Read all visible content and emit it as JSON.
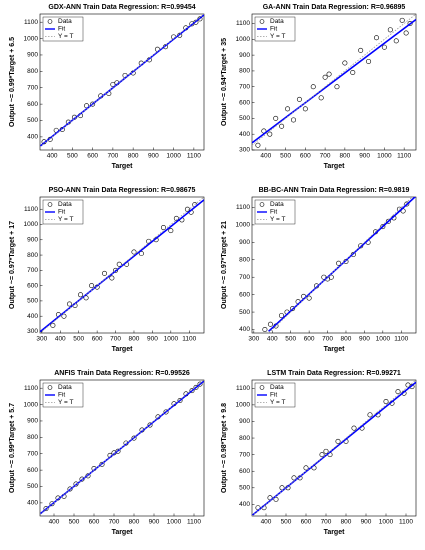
{
  "chart_data": [
    {
      "type": "scatter",
      "title": "GDX-ANN Train Data Regression: R=0.99454",
      "xlabel": "Target",
      "ylabel": "Output ~= 0.99*Target + 6.5",
      "xlim": [
        340,
        1150
      ],
      "ylim": [
        320,
        1150
      ],
      "xticks": [
        400,
        500,
        600,
        700,
        800,
        900,
        1000,
        1100
      ],
      "yticks": [
        400,
        500,
        600,
        700,
        800,
        900,
        1000,
        1100
      ],
      "legend": "upper left",
      "series": [
        {
          "name": "Data",
          "color": "#000000",
          "x": [
            360,
            390,
            420,
            450,
            480,
            510,
            540,
            570,
            600,
            640,
            680,
            720,
            760,
            800,
            840,
            880,
            920,
            960,
            1000,
            1030,
            1060,
            1090,
            1110,
            1130,
            700
          ],
          "values": [
            370,
            385,
            440,
            445,
            490,
            520,
            530,
            590,
            600,
            650,
            665,
            730,
            775,
            790,
            850,
            870,
            935,
            950,
            1010,
            1020,
            1065,
            1090,
            1100,
            1120,
            720
          ]
        },
        {
          "name": "Fit",
          "color": "#0000ff",
          "x": [
            340,
            1150
          ],
          "values": [
            343.1,
            1145
          ]
        },
        {
          "name": "Y = T",
          "color": "#999999",
          "x": [
            340,
            1150
          ],
          "values": [
            340,
            1150
          ]
        }
      ]
    },
    {
      "type": "scatter",
      "title": "GA-ANN Train Data Regression: R=0.96895",
      "xlabel": "Target",
      "ylabel": "Output ~= 0.94*Target + 35",
      "xlim": [
        330,
        1160
      ],
      "ylim": [
        300,
        1160
      ],
      "xticks": [
        400,
        500,
        600,
        700,
        800,
        900,
        1000,
        1100
      ],
      "yticks": [
        300,
        400,
        500,
        600,
        700,
        800,
        900,
        1000,
        1100
      ],
      "legend": "upper left",
      "series": [
        {
          "name": "Data",
          "color": "#000000",
          "x": [
            360,
            390,
            420,
            450,
            480,
            510,
            540,
            570,
            600,
            640,
            680,
            720,
            760,
            800,
            840,
            880,
            920,
            960,
            1000,
            1030,
            1060,
            1090,
            1110,
            1130,
            700
          ],
          "values": [
            330,
            420,
            400,
            500,
            450,
            560,
            490,
            620,
            560,
            700,
            630,
            780,
            700,
            850,
            790,
            930,
            860,
            1010,
            950,
            1060,
            990,
            1120,
            1040,
            1100,
            760
          ]
        },
        {
          "name": "Fit",
          "color": "#0000ff",
          "x": [
            330,
            1160
          ],
          "values": [
            345.2,
            1125.4
          ]
        },
        {
          "name": "Y = T",
          "color": "#999999",
          "x": [
            330,
            1160
          ],
          "values": [
            330,
            1160
          ]
        }
      ]
    },
    {
      "type": "scatter",
      "title": "PSO-ANN Train Data Regression: R=0.98675",
      "xlabel": "Target",
      "ylabel": "Output ~= 0.97*Target + 17",
      "xlim": [
        290,
        1180
      ],
      "ylim": [
        290,
        1180
      ],
      "xticks": [
        300,
        400,
        500,
        600,
        700,
        800,
        900,
        1000,
        1100
      ],
      "yticks": [
        300,
        400,
        500,
        600,
        700,
        800,
        900,
        1000,
        1100
      ],
      "legend": "upper left",
      "series": [
        {
          "name": "Data",
          "color": "#000000",
          "x": [
            360,
            390,
            420,
            450,
            480,
            510,
            540,
            570,
            600,
            640,
            680,
            720,
            760,
            800,
            840,
            880,
            920,
            960,
            1000,
            1030,
            1060,
            1090,
            1110,
            1130,
            700
          ],
          "values": [
            340,
            410,
            400,
            480,
            470,
            540,
            520,
            600,
            590,
            680,
            650,
            740,
            740,
            820,
            810,
            890,
            900,
            980,
            960,
            1040,
            1030,
            1100,
            1080,
            1130,
            700
          ]
        },
        {
          "name": "Fit",
          "color": "#0000ff",
          "x": [
            290,
            1180
          ],
          "values": [
            298.3,
            1161.6
          ]
        },
        {
          "name": "Y = T",
          "color": "#999999",
          "x": [
            290,
            1180
          ],
          "values": [
            290,
            1180
          ]
        }
      ]
    },
    {
      "type": "scatter",
      "title": "BB-BC-ANN Train Data Regression: R=0.9819",
      "xlabel": "Target",
      "ylabel": "Output ~= 0.97*Target + 21",
      "xlim": [
        290,
        1180
      ],
      "ylim": [
        380,
        1160
      ],
      "xticks": [
        300,
        400,
        500,
        600,
        700,
        800,
        900,
        1000,
        1100
      ],
      "yticks": [
        400,
        500,
        600,
        700,
        800,
        900,
        1000,
        1100
      ],
      "legend": "upper left",
      "series": [
        {
          "name": "Data",
          "color": "#000000",
          "x": [
            360,
            390,
            420,
            450,
            480,
            510,
            540,
            570,
            600,
            640,
            680,
            720,
            760,
            800,
            840,
            880,
            920,
            960,
            1000,
            1030,
            1060,
            1090,
            1110,
            1130,
            700
          ],
          "values": [
            400,
            430,
            420,
            480,
            500,
            520,
            560,
            590,
            580,
            650,
            700,
            700,
            780,
            790,
            830,
            880,
            900,
            960,
            990,
            1020,
            1040,
            1090,
            1080,
            1120,
            690
          ]
        },
        {
          "name": "Fit",
          "color": "#0000ff",
          "x": [
            380,
            1180
          ],
          "values": [
            389.6,
            1165.6
          ]
        },
        {
          "name": "Y = T",
          "color": "#999999",
          "x": [
            380,
            1180
          ],
          "values": [
            380,
            1180
          ]
        }
      ]
    },
    {
      "type": "scatter",
      "title": "ANFIS Train Data Regression: R=0.99526",
      "xlabel": "Target",
      "ylabel": "Output ~= 0.99*Target + 5.7",
      "xlim": [
        330,
        1150
      ],
      "ylim": [
        320,
        1150
      ],
      "xticks": [
        400,
        500,
        600,
        700,
        800,
        900,
        1000,
        1100
      ],
      "yticks": [
        400,
        500,
        600,
        700,
        800,
        900,
        1000,
        1100
      ],
      "legend": "upper left",
      "series": [
        {
          "name": "Data",
          "color": "#000000",
          "x": [
            360,
            390,
            420,
            450,
            480,
            510,
            540,
            570,
            600,
            640,
            680,
            720,
            760,
            800,
            840,
            880,
            920,
            960,
            1000,
            1030,
            1060,
            1090,
            1110,
            1130,
            700
          ],
          "values": [
            365,
            395,
            430,
            440,
            485,
            515,
            545,
            565,
            610,
            635,
            690,
            715,
            765,
            795,
            845,
            875,
            925,
            955,
            1005,
            1025,
            1065,
            1085,
            1105,
            1125,
            705
          ]
        },
        {
          "name": "Fit",
          "color": "#0000ff",
          "x": [
            330,
            1150
          ],
          "values": [
            332.4,
            1144.2
          ]
        },
        {
          "name": "Y = T",
          "color": "#999999",
          "x": [
            330,
            1150
          ],
          "values": [
            330,
            1150
          ]
        }
      ]
    },
    {
      "type": "scatter",
      "title": "LSTM Train Data Regression: R=0.99271",
      "xlabel": "Target",
      "ylabel": "Output ~= 0.98*Target + 9.8",
      "xlim": [
        330,
        1150
      ],
      "ylim": [
        330,
        1150
      ],
      "xticks": [
        400,
        500,
        600,
        700,
        800,
        900,
        1000,
        1100
      ],
      "yticks": [
        400,
        500,
        600,
        700,
        800,
        900,
        1000,
        1100
      ],
      "legend": "upper left",
      "series": [
        {
          "name": "Data",
          "color": "#000000",
          "x": [
            360,
            390,
            420,
            450,
            480,
            510,
            540,
            570,
            600,
            640,
            680,
            720,
            760,
            800,
            840,
            880,
            920,
            960,
            1000,
            1030,
            1060,
            1090,
            1110,
            1130,
            700
          ],
          "values": [
            380,
            380,
            440,
            430,
            500,
            500,
            560,
            560,
            620,
            620,
            700,
            700,
            780,
            780,
            860,
            860,
            940,
            940,
            1020,
            1010,
            1080,
            1070,
            1120,
            1110,
            720
          ]
        },
        {
          "name": "Fit",
          "color": "#0000ff",
          "x": [
            330,
            1150
          ],
          "values": [
            333.2,
            1136.8
          ]
        },
        {
          "name": "Y = T",
          "color": "#999999",
          "x": [
            330,
            1150
          ],
          "values": [
            330,
            1150
          ]
        }
      ]
    }
  ]
}
